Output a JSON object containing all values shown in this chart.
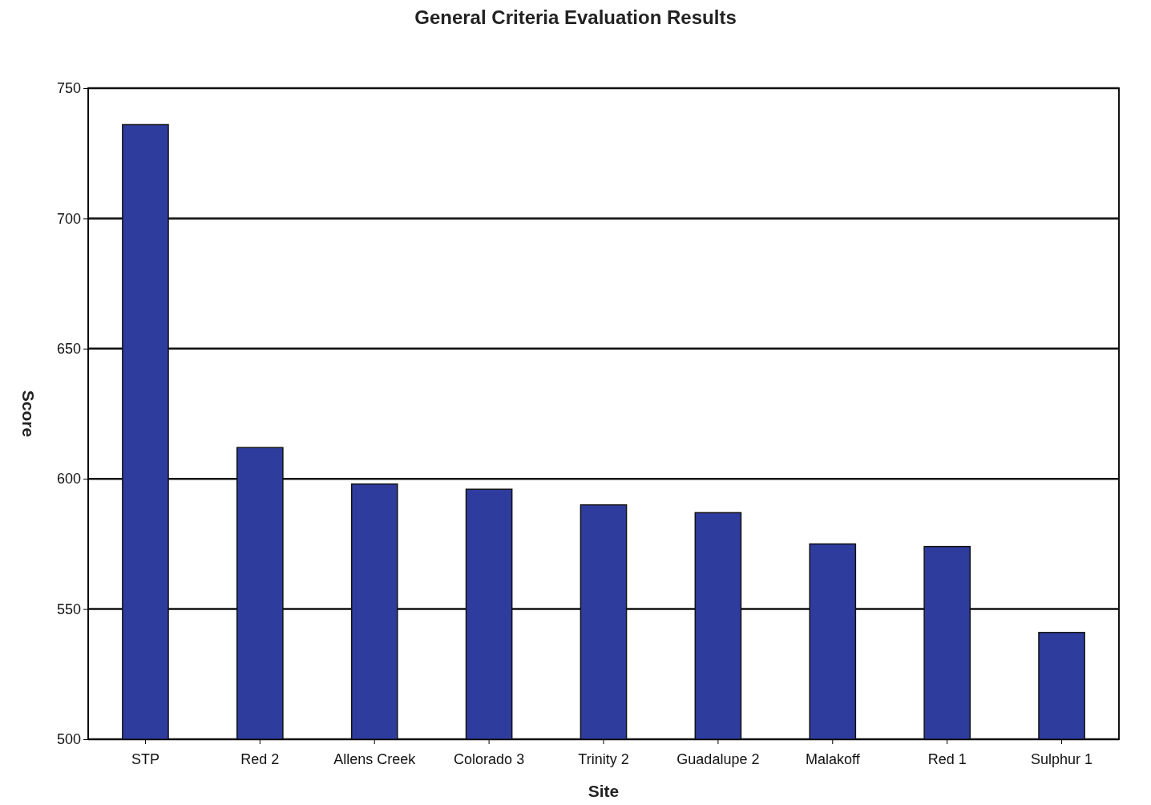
{
  "chart_data": {
    "type": "bar",
    "title": "General Criteria Evaluation Results",
    "xlabel": "Site",
    "ylabel": "Score",
    "categories": [
      "STP",
      "Red 2",
      "Allens Creek",
      "Colorado 3",
      "Trinity 2",
      "Guadalupe 2",
      "Malakoff",
      "Red 1",
      "Sulphur 1"
    ],
    "values": [
      736,
      612,
      598,
      596,
      590,
      587,
      575,
      574,
      541
    ],
    "color": "#2e3c9e",
    "ylim": [
      500,
      750
    ],
    "yticks": [
      500,
      550,
      600,
      650,
      700,
      750
    ],
    "grid": "y"
  }
}
